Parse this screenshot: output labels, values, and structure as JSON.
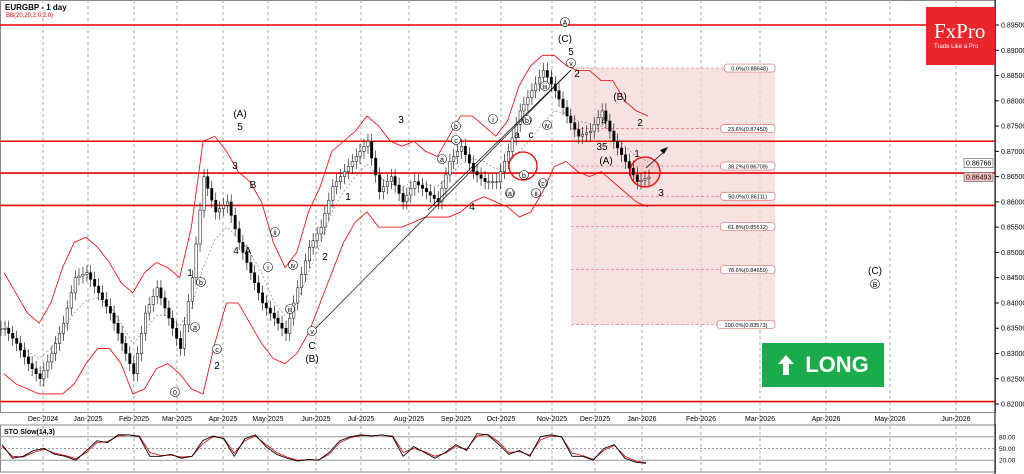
{
  "header": {
    "symbol_title": "EURGBP - 1 day",
    "indicator_label": "BB(20,20,2.0,2.0)"
  },
  "logo": {
    "brand": "FxPro",
    "tagline": "Trade Like a Pro",
    "color": "#e8262b"
  },
  "signal": {
    "label": "LONG",
    "icon": "arrow-up-icon",
    "color": "#1aab4b"
  },
  "sto_panel": {
    "label": "STO Slow(14,3)",
    "levels": [
      "80.00",
      "50.00",
      "20.00"
    ]
  },
  "chart_data": {
    "type": "candlestick",
    "title": "EURGBP - 1 day",
    "y_ticks": [
      "0.89500",
      "0.89000",
      "0.88500",
      "0.88000",
      "0.87500",
      "0.87000",
      "0.86500",
      "0.86000",
      "0.85500",
      "0.85000",
      "0.84500",
      "0.84000",
      "0.83500",
      "0.83000",
      "0.82500",
      "0.82000"
    ],
    "ylim": [
      0.8195,
      0.8985
    ],
    "x_ticks": [
      "Dec-2024",
      "Jan-2025",
      "Feb-2025",
      "Mar-2025",
      "Apr-2025",
      "May-2025",
      "Jun-2025",
      "Jul-2025",
      "Aug-2025",
      "Sep-2025",
      "Oct-2025",
      "Nov-2025",
      "Dec-2025",
      "Jan-2026",
      "Feb-2026",
      "Mar-2026",
      "Apr-2026",
      "May-2026",
      "Jun-2026"
    ],
    "price_markers": [
      {
        "value": "0.86766",
        "style": "outline"
      },
      {
        "value": "0.86493",
        "style": "current"
      }
    ],
    "closes": [
      0.835,
      0.832,
      0.828,
      0.825,
      0.83,
      0.836,
      0.845,
      0.846,
      0.842,
      0.838,
      0.832,
      0.826,
      0.838,
      0.843,
      0.837,
      0.831,
      0.845,
      0.865,
      0.858,
      0.86,
      0.852,
      0.846,
      0.84,
      0.837,
      0.834,
      0.843,
      0.851,
      0.855,
      0.863,
      0.866,
      0.869,
      0.872,
      0.862,
      0.865,
      0.86,
      0.864,
      0.862,
      0.86,
      0.868,
      0.871,
      0.866,
      0.864,
      0.864,
      0.87,
      0.878,
      0.882,
      0.886,
      0.882,
      0.877,
      0.873,
      0.874,
      0.878,
      0.872,
      0.868,
      0.864,
      0.8649
    ],
    "bb_upper": [
      0.846,
      0.842,
      0.838,
      0.836,
      0.84,
      0.847,
      0.852,
      0.853,
      0.851,
      0.848,
      0.844,
      0.842,
      0.846,
      0.848,
      0.847,
      0.845,
      0.855,
      0.872,
      0.873,
      0.87,
      0.866,
      0.864,
      0.86,
      0.852,
      0.847,
      0.85,
      0.858,
      0.863,
      0.87,
      0.872,
      0.874,
      0.877,
      0.875,
      0.872,
      0.871,
      0.872,
      0.87,
      0.869,
      0.873,
      0.877,
      0.877,
      0.875,
      0.873,
      0.876,
      0.883,
      0.887,
      0.889,
      0.889,
      0.887,
      0.886,
      0.886,
      0.884,
      0.884,
      0.88,
      0.878,
      0.877
    ],
    "bb_lower": [
      0.826,
      0.824,
      0.823,
      0.822,
      0.822,
      0.822,
      0.824,
      0.828,
      0.831,
      0.831,
      0.828,
      0.822,
      0.823,
      0.827,
      0.828,
      0.826,
      0.823,
      0.822,
      0.832,
      0.84,
      0.84,
      0.836,
      0.832,
      0.829,
      0.828,
      0.83,
      0.834,
      0.84,
      0.846,
      0.852,
      0.856,
      0.858,
      0.855,
      0.855,
      0.855,
      0.856,
      0.857,
      0.857,
      0.857,
      0.858,
      0.86,
      0.861,
      0.86,
      0.859,
      0.857,
      0.858,
      0.862,
      0.867,
      0.868,
      0.866,
      0.865,
      0.866,
      0.864,
      0.862,
      0.86,
      0.859
    ],
    "horizontal_levels": [
      0.895,
      0.872,
      0.8657,
      0.8593,
      0.8205
    ],
    "fibonacci": {
      "high": 0.88648,
      "low": 0.83573,
      "levels": [
        "0.0%(0.88648)",
        "23.6%(0.87450)",
        "38.2%(0.86709)",
        "50.0%(0.86111)",
        "61.8%(0.85512)",
        "78.6%(0.84659)",
        "100.0%(0.83573)"
      ],
      "values": [
        0.88648,
        0.8745,
        0.86709,
        0.86111,
        0.85512,
        0.84659,
        0.83573
      ]
    },
    "wave_labels": [
      "A",
      "(C)",
      "5",
      "v",
      "2",
      "(B)",
      "4",
      "2",
      "35",
      "(A)",
      "1",
      "3",
      "(A)",
      "5",
      "3",
      "B",
      "4",
      "A",
      "1",
      "b",
      "a",
      "c",
      "2",
      "0",
      "ii",
      "i",
      "iv",
      "iii",
      "C",
      "(B)",
      "v",
      "1",
      "2",
      "3",
      "4",
      "(C)",
      "B",
      "a",
      "b",
      "c",
      "i",
      "ii",
      "iii",
      "iv",
      "(b)",
      "a",
      "c",
      "b",
      "(a)",
      "(c)"
    ],
    "sto_k": [
      60,
      25,
      30,
      45,
      50,
      35,
      30,
      20,
      45,
      70,
      65,
      85,
      85,
      80,
      30,
      30,
      35,
      25,
      30,
      70,
      82,
      75,
      30,
      75,
      85,
      55,
      35,
      25,
      18,
      22,
      20,
      40,
      70,
      80,
      85,
      82,
      85,
      80,
      30,
      55,
      40,
      25,
      40,
      60,
      45,
      88,
      85,
      62,
      35,
      45,
      30,
      80,
      85,
      80,
      30,
      30,
      20,
      50,
      60,
      25,
      15,
      12
    ],
    "sto_d": [
      55,
      30,
      28,
      40,
      48,
      38,
      32,
      24,
      40,
      65,
      68,
      82,
      85,
      82,
      40,
      32,
      33,
      28,
      30,
      62,
      80,
      77,
      38,
      70,
      82,
      60,
      40,
      28,
      20,
      21,
      21,
      35,
      65,
      78,
      83,
      83,
      84,
      82,
      40,
      50,
      42,
      30,
      38,
      55,
      48,
      82,
      86,
      68,
      40,
      42,
      33,
      72,
      82,
      80,
      38,
      32,
      22,
      45,
      58,
      30,
      18,
      14
    ]
  }
}
